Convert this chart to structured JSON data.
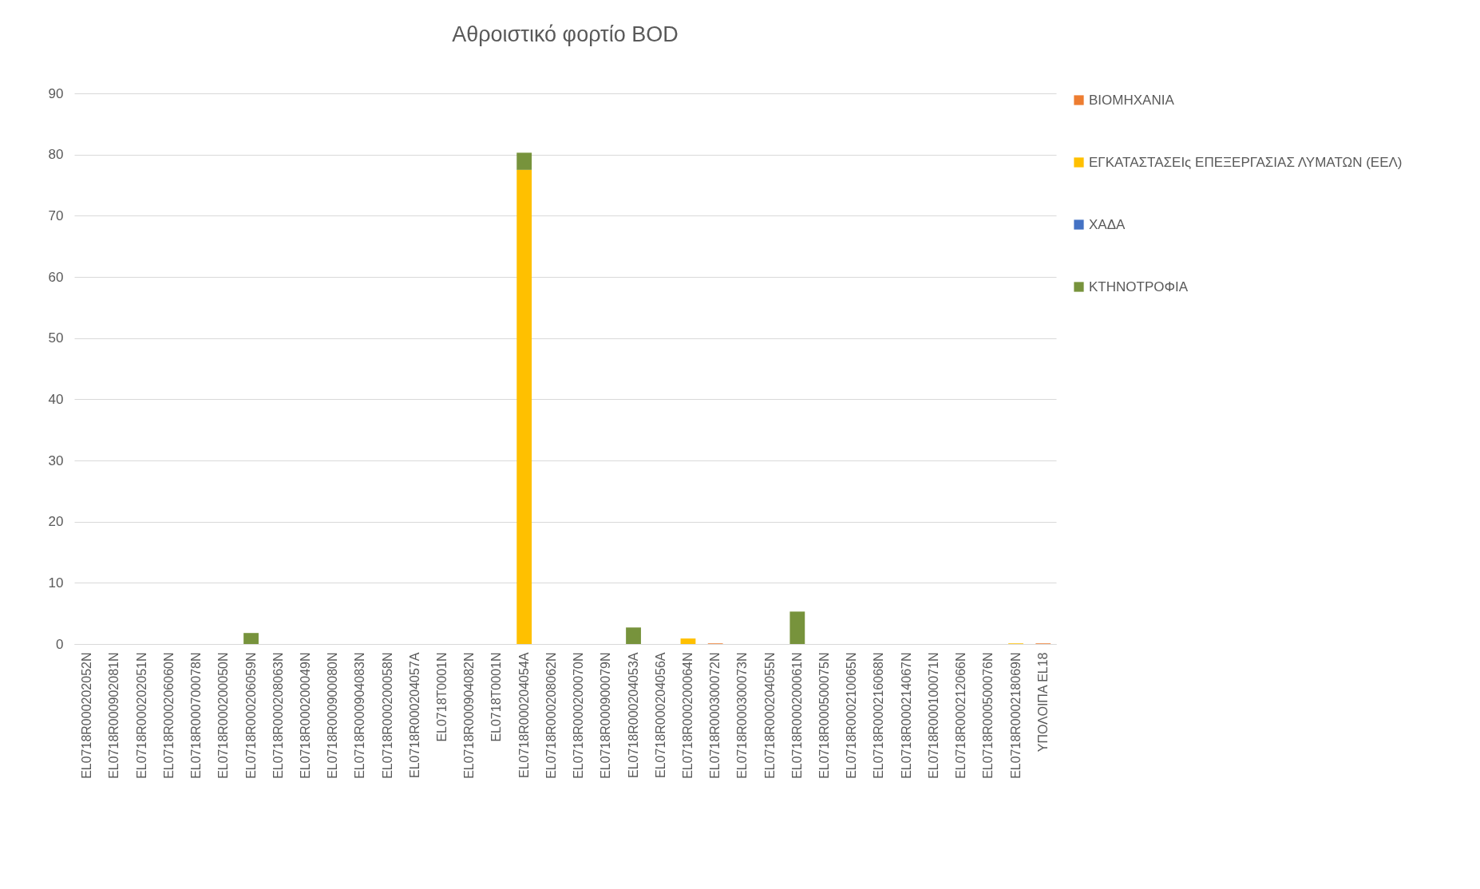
{
  "chart_data": {
    "type": "bar",
    "title": "Αθροιστικό φορτίο BOD",
    "stacked": true,
    "legend": "right",
    "grid": "y",
    "categories": [
      "EL0718R000202052N",
      "EL0718R000902081N",
      "EL0718R000202051N",
      "EL0718R000206060N",
      "EL0718R000700078N",
      "EL0718R000200050N",
      "EL0718R000206059N",
      "EL0718R000208063N",
      "EL0718R000200049N",
      "EL0718R000900080N",
      "EL0718R000904083N",
      "EL0718R000200058N",
      "EL0718R000204057A",
      "EL0718T0001N",
      "EL0718R000904082N",
      "EL0718T0001N",
      "EL0718R000204054A",
      "EL0718R000208062N",
      "EL0718R000200070N",
      "EL0718R000900079N",
      "EL0718R000204053A",
      "EL0718R000204056A",
      "EL0718R000200064N",
      "EL0718R000300072N",
      "EL0718R000300073N",
      "EL0718R000204055N",
      "EL0718R000200061N",
      "EL0718R000500075N",
      "EL0718R000210065N",
      "EL0718R000216068N",
      "EL0718R000214067N",
      "EL0718R000100071N",
      "EL0718R000212066N",
      "EL0718R000500076N",
      "EL0718R000218069N",
      "ΥΠΟΛΟΙΠΑ EL18"
    ],
    "series": [
      {
        "name": "ΒΙΟΜΗΧΑΝΙΑ",
        "color": "#ed7d31",
        "values": [
          0,
          0,
          0,
          0,
          0,
          0,
          0,
          0,
          0,
          0,
          0,
          0,
          0,
          0,
          0,
          0,
          0,
          0,
          0,
          0,
          0,
          0,
          0,
          0.1,
          0,
          0,
          0,
          0,
          0,
          0,
          0,
          0,
          0,
          0,
          0,
          0.1
        ]
      },
      {
        "name": "ΕΓΚΑΤΑΣΤΑΣΕΙς ΕΠΕΞΕΡΓΑΣΙΑΣ ΛΥΜΑΤΩΝ (ΕΕΛ)",
        "color": "#ffc000",
        "values": [
          0,
          0,
          0,
          0,
          0,
          0,
          0,
          0,
          0,
          0,
          0,
          0,
          0,
          0,
          0,
          0,
          77.5,
          0,
          0,
          0,
          0,
          0,
          0.9,
          0,
          0,
          0,
          0,
          0,
          0,
          0,
          0,
          0,
          0,
          0,
          0.1,
          0
        ]
      },
      {
        "name": "ΧΑΔΑ",
        "color": "#4472c4",
        "values": [
          0,
          0,
          0,
          0,
          0,
          0,
          0,
          0,
          0,
          0,
          0,
          0,
          0,
          0,
          0,
          0,
          0,
          0,
          0,
          0,
          0,
          0,
          0,
          0,
          0,
          0,
          0,
          0,
          0,
          0,
          0,
          0,
          0,
          0,
          0,
          0
        ]
      },
      {
        "name": "ΚΤΗΝΟΤΡΟΦΙΑ",
        "color": "#77933c",
        "values": [
          0,
          0,
          0,
          0,
          0,
          0,
          1.8,
          0,
          0,
          0,
          0,
          0,
          0,
          0,
          0,
          0,
          2.8,
          0,
          0,
          0,
          2.7,
          0,
          0,
          0,
          0,
          0,
          5.3,
          0,
          0,
          0,
          0,
          0,
          0,
          0,
          0,
          0
        ]
      }
    ],
    "ylim": [
      0,
      90
    ],
    "yticks": [
      0,
      10,
      20,
      30,
      40,
      50,
      60,
      70,
      80,
      90
    ]
  }
}
